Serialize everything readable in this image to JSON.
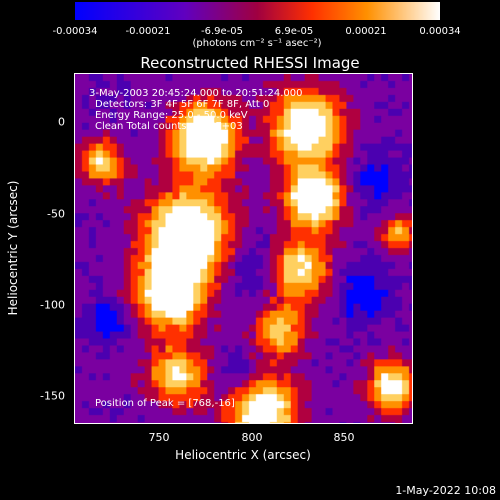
{
  "colorbar": {
    "ticks": [
      "-0.00034",
      "-0.00021",
      "-6.9e-05",
      "6.9e-05",
      "0.00021",
      "0.00034"
    ],
    "units": "(photons cm⁻² s⁻¹ asec⁻²)",
    "range": [
      -0.00034,
      0.00034
    ]
  },
  "chart_data": {
    "type": "heatmap",
    "title": "Reconstructed RHESSI Image",
    "xlabel": "Heliocentric X (arcsec)",
    "ylabel": "Heliocentric Y (arcsec)",
    "xlim": [
      704,
      891
    ],
    "ylim": [
      -164,
      24
    ],
    "xticks": [
      "750",
      "800",
      "850"
    ],
    "xtick_values": [
      750,
      800,
      850
    ],
    "yticks": [
      "0",
      "-50",
      "-100",
      "-150"
    ],
    "ytick_values": [
      0,
      -50,
      -100,
      -150
    ],
    "peak": [
      768,
      -16
    ],
    "colormap": [
      "#0000ff",
      "#4b00b0",
      "#7a00a0",
      "#b00040",
      "#ff3000",
      "#ff9000",
      "#ffd060",
      "#ffffff"
    ]
  },
  "annotations": {
    "time": "3-May-2003 20:45:24.000 to 20:51:24.000",
    "detectors": "Detectors: 3F 4F 5F 6F 7F 8F, Att 0",
    "energy": "Energy Range: 25.0 - 50.0 keV",
    "clean": "Clean     Total counts: 6.76E+03",
    "peak": "Position of Peak = [768,-16]"
  },
  "footer": {
    "timestamp": "1-May-2022 10:08"
  }
}
